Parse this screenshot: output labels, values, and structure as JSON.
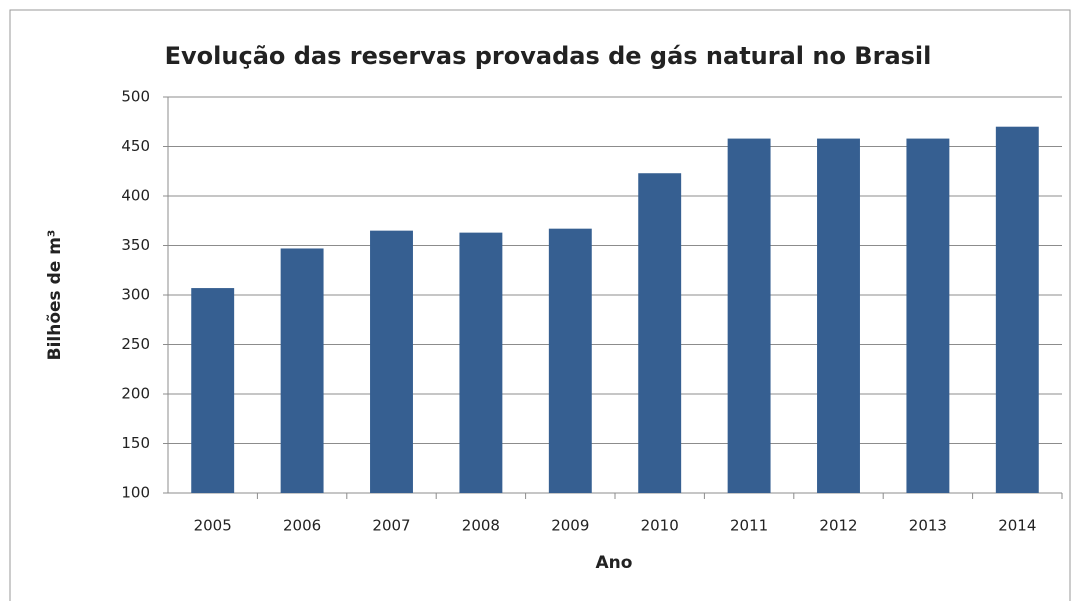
{
  "chart_data": {
    "type": "bar",
    "title": "Evolução das reservas provadas de gás natural no Brasil",
    "xlabel": "Ano",
    "ylabel": "Bilhões de m³",
    "categories": [
      "2005",
      "2006",
      "2007",
      "2008",
      "2009",
      "2010",
      "2011",
      "2012",
      "2013",
      "2014"
    ],
    "values": [
      307,
      347,
      365,
      363,
      367,
      423,
      458,
      458,
      458,
      470
    ],
    "color": "#365f91",
    "ylim": [
      100,
      500
    ],
    "yticks": [
      100,
      150,
      200,
      250,
      300,
      350,
      400,
      450,
      500
    ],
    "grid": true
  }
}
